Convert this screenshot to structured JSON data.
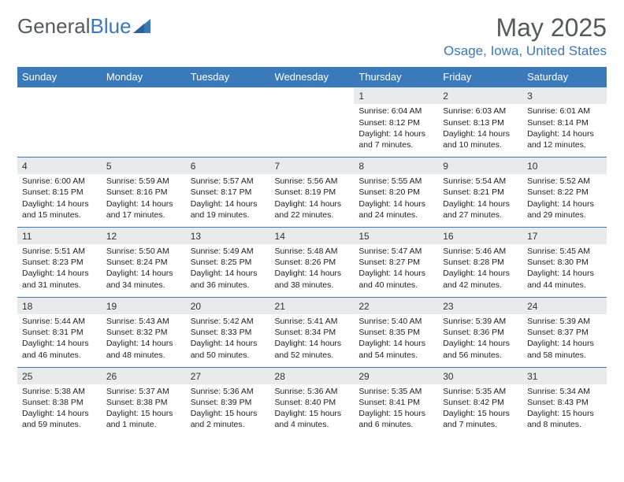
{
  "logo": {
    "part1": "General",
    "part2": "Blue"
  },
  "title": {
    "month": "May 2025",
    "location": "Osage, Iowa, United States"
  },
  "header_bg": "#3a79ba",
  "daynum_bg": "#e9eaeb",
  "day_headers": [
    "Sunday",
    "Monday",
    "Tuesday",
    "Wednesday",
    "Thursday",
    "Friday",
    "Saturday"
  ],
  "weeks": [
    [
      null,
      null,
      null,
      null,
      {
        "n": "1",
        "sr": "6:04 AM",
        "ss": "8:12 PM",
        "dl": "14 hours and 7 minutes."
      },
      {
        "n": "2",
        "sr": "6:03 AM",
        "ss": "8:13 PM",
        "dl": "14 hours and 10 minutes."
      },
      {
        "n": "3",
        "sr": "6:01 AM",
        "ss": "8:14 PM",
        "dl": "14 hours and 12 minutes."
      }
    ],
    [
      {
        "n": "4",
        "sr": "6:00 AM",
        "ss": "8:15 PM",
        "dl": "14 hours and 15 minutes."
      },
      {
        "n": "5",
        "sr": "5:59 AM",
        "ss": "8:16 PM",
        "dl": "14 hours and 17 minutes."
      },
      {
        "n": "6",
        "sr": "5:57 AM",
        "ss": "8:17 PM",
        "dl": "14 hours and 19 minutes."
      },
      {
        "n": "7",
        "sr": "5:56 AM",
        "ss": "8:19 PM",
        "dl": "14 hours and 22 minutes."
      },
      {
        "n": "8",
        "sr": "5:55 AM",
        "ss": "8:20 PM",
        "dl": "14 hours and 24 minutes."
      },
      {
        "n": "9",
        "sr": "5:54 AM",
        "ss": "8:21 PM",
        "dl": "14 hours and 27 minutes."
      },
      {
        "n": "10",
        "sr": "5:52 AM",
        "ss": "8:22 PM",
        "dl": "14 hours and 29 minutes."
      }
    ],
    [
      {
        "n": "11",
        "sr": "5:51 AM",
        "ss": "8:23 PM",
        "dl": "14 hours and 31 minutes."
      },
      {
        "n": "12",
        "sr": "5:50 AM",
        "ss": "8:24 PM",
        "dl": "14 hours and 34 minutes."
      },
      {
        "n": "13",
        "sr": "5:49 AM",
        "ss": "8:25 PM",
        "dl": "14 hours and 36 minutes."
      },
      {
        "n": "14",
        "sr": "5:48 AM",
        "ss": "8:26 PM",
        "dl": "14 hours and 38 minutes."
      },
      {
        "n": "15",
        "sr": "5:47 AM",
        "ss": "8:27 PM",
        "dl": "14 hours and 40 minutes."
      },
      {
        "n": "16",
        "sr": "5:46 AM",
        "ss": "8:28 PM",
        "dl": "14 hours and 42 minutes."
      },
      {
        "n": "17",
        "sr": "5:45 AM",
        "ss": "8:30 PM",
        "dl": "14 hours and 44 minutes."
      }
    ],
    [
      {
        "n": "18",
        "sr": "5:44 AM",
        "ss": "8:31 PM",
        "dl": "14 hours and 46 minutes."
      },
      {
        "n": "19",
        "sr": "5:43 AM",
        "ss": "8:32 PM",
        "dl": "14 hours and 48 minutes."
      },
      {
        "n": "20",
        "sr": "5:42 AM",
        "ss": "8:33 PM",
        "dl": "14 hours and 50 minutes."
      },
      {
        "n": "21",
        "sr": "5:41 AM",
        "ss": "8:34 PM",
        "dl": "14 hours and 52 minutes."
      },
      {
        "n": "22",
        "sr": "5:40 AM",
        "ss": "8:35 PM",
        "dl": "14 hours and 54 minutes."
      },
      {
        "n": "23",
        "sr": "5:39 AM",
        "ss": "8:36 PM",
        "dl": "14 hours and 56 minutes."
      },
      {
        "n": "24",
        "sr": "5:39 AM",
        "ss": "8:37 PM",
        "dl": "14 hours and 58 minutes."
      }
    ],
    [
      {
        "n": "25",
        "sr": "5:38 AM",
        "ss": "8:38 PM",
        "dl": "14 hours and 59 minutes."
      },
      {
        "n": "26",
        "sr": "5:37 AM",
        "ss": "8:38 PM",
        "dl": "15 hours and 1 minute."
      },
      {
        "n": "27",
        "sr": "5:36 AM",
        "ss": "8:39 PM",
        "dl": "15 hours and 2 minutes."
      },
      {
        "n": "28",
        "sr": "5:36 AM",
        "ss": "8:40 PM",
        "dl": "15 hours and 4 minutes."
      },
      {
        "n": "29",
        "sr": "5:35 AM",
        "ss": "8:41 PM",
        "dl": "15 hours and 6 minutes."
      },
      {
        "n": "30",
        "sr": "5:35 AM",
        "ss": "8:42 PM",
        "dl": "15 hours and 7 minutes."
      },
      {
        "n": "31",
        "sr": "5:34 AM",
        "ss": "8:43 PM",
        "dl": "15 hours and 8 minutes."
      }
    ]
  ],
  "labels": {
    "sunrise": "Sunrise: ",
    "sunset": "Sunset: ",
    "daylight": "Daylight: "
  }
}
